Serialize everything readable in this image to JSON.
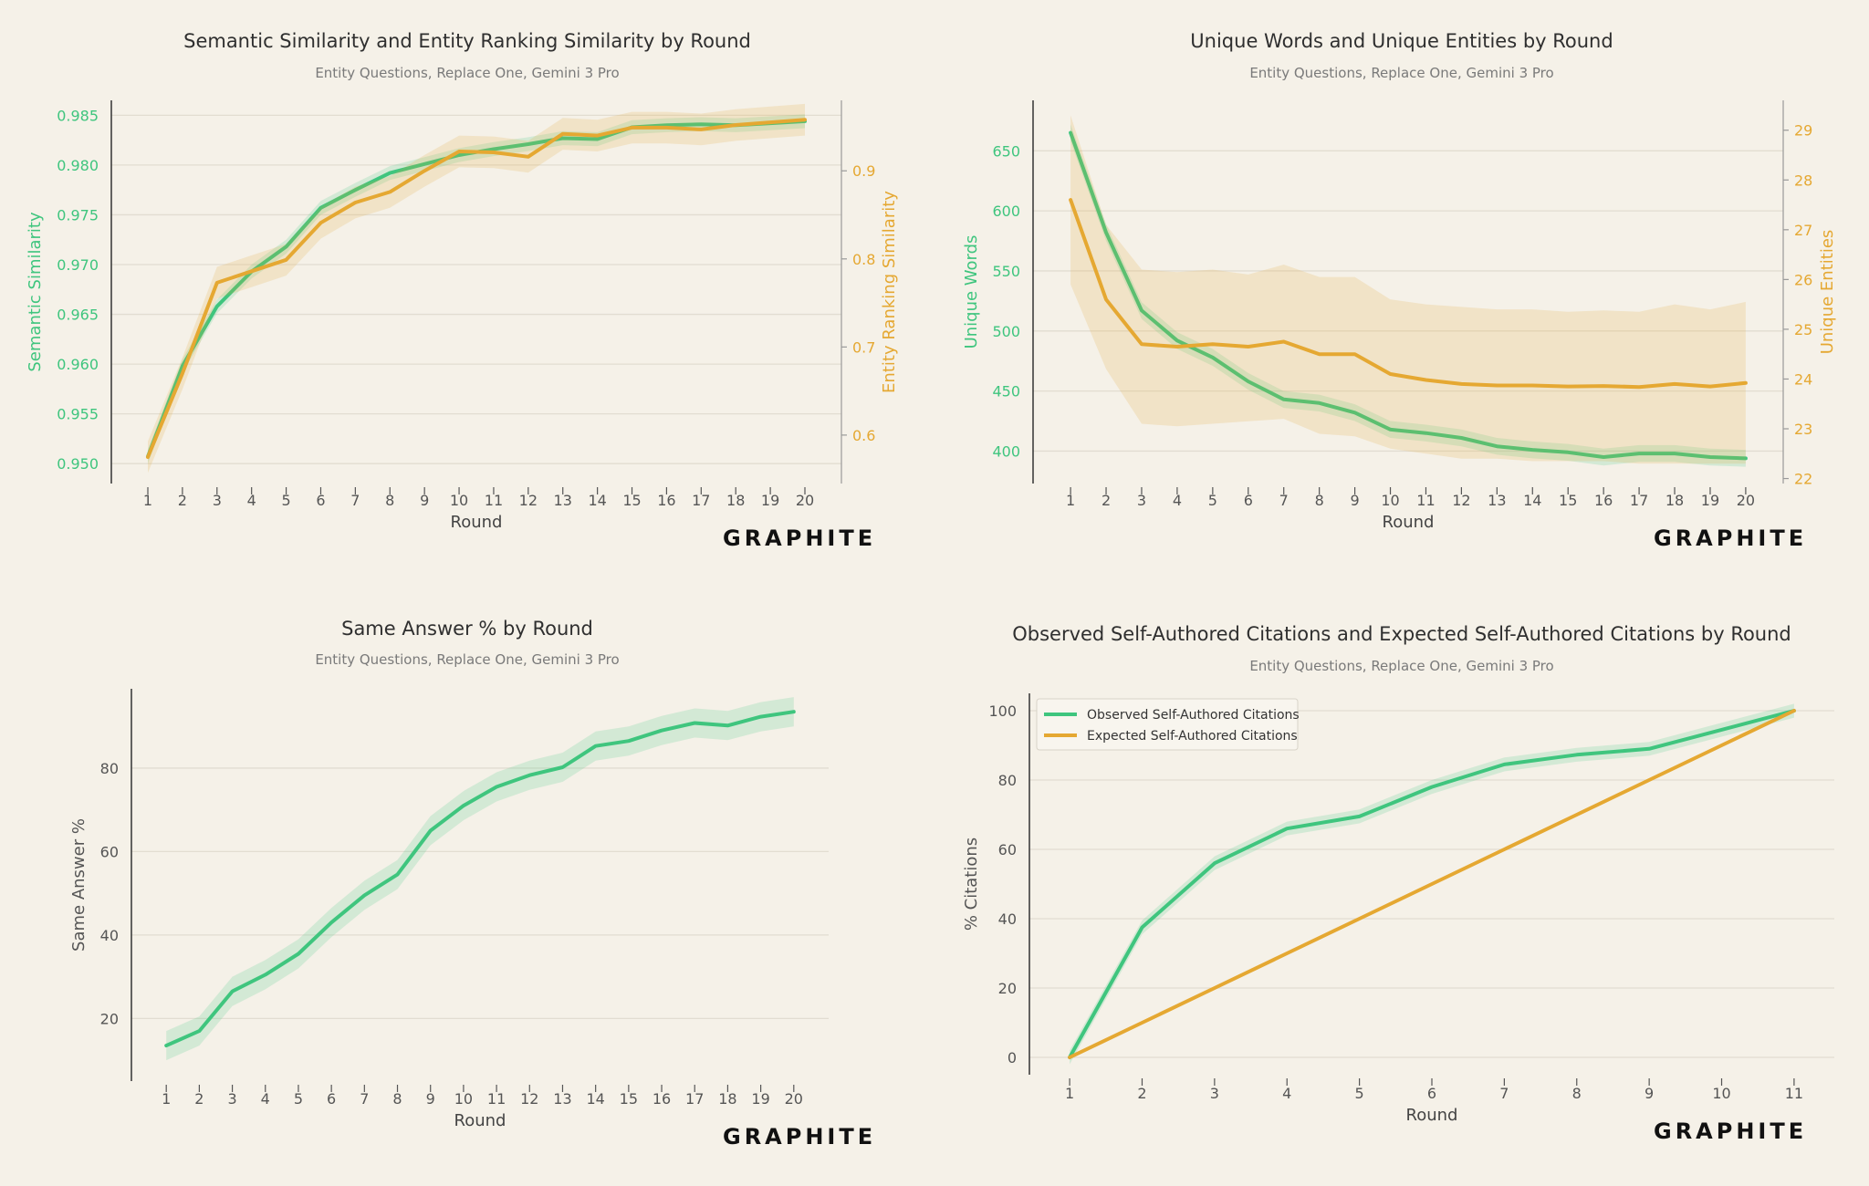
{
  "colors": {
    "green": "#3fc57e",
    "orange": "#e5a832",
    "grid": "#e2ddd1",
    "axis": "#333333",
    "background": "#f5f1e8"
  },
  "logo_text": "GRAPHITE",
  "chart_data": [
    {
      "id": "semantic",
      "type": "line",
      "title": "Semantic Similarity and Entity Ranking Similarity by Round",
      "subtitle": "Entity Questions, Replace One, Gemini 3 Pro",
      "xlabel": "Round",
      "ylabel": "Semantic Similarity",
      "y2label": "Entity Ranking Similarity",
      "x": [
        1,
        2,
        3,
        4,
        5,
        6,
        7,
        8,
        9,
        10,
        11,
        12,
        13,
        14,
        15,
        16,
        17,
        18,
        19,
        20
      ],
      "ylim": [
        0.948,
        0.9865
      ],
      "yticks": [
        "0.950",
        "0.955",
        "0.960",
        "0.965",
        "0.970",
        "0.975",
        "0.980",
        "0.985"
      ],
      "y2lim": [
        0.545,
        0.98
      ],
      "y2ticks": [
        "0.6",
        "0.7",
        "0.8",
        "0.9"
      ],
      "grid": true,
      "series": [
        {
          "axis": "left",
          "color": "green",
          "values": [
            0.9507,
            0.9598,
            0.9658,
            0.9693,
            0.9718,
            0.9757,
            0.9775,
            0.9792,
            0.9801,
            0.981,
            0.9816,
            0.9821,
            0.9827,
            0.9826,
            0.9838,
            0.984,
            0.9841,
            0.984,
            0.9842,
            0.9844
          ],
          "band": 0.0007
        },
        {
          "axis": "right",
          "color": "orange",
          "values": [
            0.575,
            0.67,
            0.773,
            0.786,
            0.799,
            0.841,
            0.864,
            0.876,
            0.9,
            0.922,
            0.921,
            0.916,
            0.942,
            0.94,
            0.949,
            0.949,
            0.947,
            0.952,
            0.955,
            0.958
          ],
          "band": 0.018
        }
      ]
    },
    {
      "id": "unique",
      "type": "line",
      "title": "Unique Words and Unique Entities by Round",
      "subtitle": "Entity Questions, Replace One, Gemini 3 Pro",
      "xlabel": "Round",
      "ylabel": "Unique Words",
      "y2label": "Unique Entities",
      "x": [
        1,
        2,
        3,
        4,
        5,
        6,
        7,
        8,
        9,
        10,
        11,
        12,
        13,
        14,
        15,
        16,
        17,
        18,
        19,
        20
      ],
      "ylim": [
        373,
        692
      ],
      "yticks": [
        "400",
        "450",
        "500",
        "550",
        "600",
        "650"
      ],
      "y2lim": [
        21.9,
        29.6
      ],
      "y2ticks": [
        "22",
        "23",
        "24",
        "25",
        "26",
        "27",
        "28",
        "29"
      ],
      "grid": true,
      "series": [
        {
          "axis": "left",
          "color": "green",
          "values": [
            665,
            582,
            517,
            492,
            478,
            458,
            443,
            440,
            432,
            418,
            415,
            411,
            404,
            401,
            399,
            395,
            398,
            398,
            395,
            394
          ],
          "band": 7
        },
        {
          "axis": "right",
          "color": "orange",
          "values": [
            27.6,
            25.6,
            24.7,
            24.65,
            24.7,
            24.65,
            24.75,
            24.5,
            24.5,
            24.1,
            23.98,
            23.9,
            23.87,
            23.87,
            23.85,
            23.86,
            23.84,
            23.9,
            23.85,
            23.92
          ],
          "lower": [
            25.9,
            24.2,
            23.1,
            23.05,
            23.1,
            23.15,
            23.2,
            22.9,
            22.85,
            22.6,
            22.5,
            22.4,
            22.4,
            22.35,
            22.35,
            22.35,
            22.3,
            22.3,
            22.3,
            22.3
          ],
          "upper": [
            29.3,
            27.1,
            26.2,
            26.15,
            26.2,
            26.1,
            26.3,
            26.05,
            26.05,
            25.6,
            25.5,
            25.45,
            25.4,
            25.4,
            25.35,
            25.38,
            25.35,
            25.5,
            25.4,
            25.55
          ]
        }
      ]
    },
    {
      "id": "same",
      "type": "line",
      "title": "Same Answer % by Round",
      "subtitle": "Entity Questions, Replace One, Gemini 3 Pro",
      "xlabel": "Round",
      "ylabel": "Same Answer %",
      "x": [
        1,
        2,
        3,
        4,
        5,
        6,
        7,
        8,
        9,
        10,
        11,
        12,
        13,
        14,
        15,
        16,
        17,
        18,
        19,
        20
      ],
      "ylim": [
        5,
        99
      ],
      "yticks": [
        "20",
        "40",
        "60",
        "80"
      ],
      "grid": true,
      "series": [
        {
          "axis": "left",
          "color": "green",
          "values": [
            13.5,
            17,
            26.5,
            30.5,
            35.5,
            43,
            49.5,
            54.5,
            65,
            71,
            75.5,
            78.3,
            80.2,
            85.3,
            86.5,
            89,
            90.8,
            90.2,
            92.3,
            93.5
          ],
          "band": 3.5
        }
      ]
    },
    {
      "id": "citations",
      "type": "line",
      "title": "Observed Self-Authored Citations and Expected Self-Authored Citations by Round",
      "subtitle": "Entity Questions, Replace One, Gemini 3 Pro",
      "xlabel": "Round",
      "ylabel": "% Citations",
      "x": [
        1,
        2,
        3,
        4,
        5,
        6,
        7,
        8,
        9,
        10,
        11
      ],
      "ylim": [
        -5,
        105
      ],
      "yticks": [
        "0",
        "20",
        "40",
        "60",
        "80",
        "100"
      ],
      "grid": true,
      "legend_position": "top-left",
      "series": [
        {
          "name": "Observed Self-Authored Citations",
          "axis": "left",
          "color": "green",
          "values": [
            0,
            37.5,
            56,
            66,
            69.5,
            78,
            84.5,
            87.3,
            89,
            94.5,
            100
          ],
          "band": 2
        },
        {
          "name": "Expected Self-Authored Citations",
          "axis": "left",
          "color": "orange",
          "values": [
            0,
            10,
            20,
            30,
            40,
            50,
            60,
            70,
            80,
            90,
            100
          ]
        }
      ]
    }
  ]
}
